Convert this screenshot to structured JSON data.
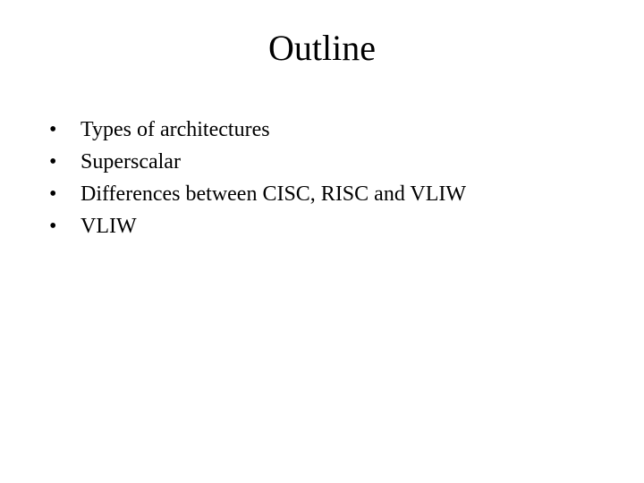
{
  "slide": {
    "title": "Outline",
    "title_fontsize": 40,
    "title_color": "#000000",
    "bullets": [
      "Types of architectures",
      "Superscalar",
      "Differences between CISC, RISC and VLIW",
      "VLIW"
    ],
    "bullet_fontsize": 24,
    "bullet_color": "#000000",
    "background_color": "#ffffff",
    "font_family": "Times New Roman"
  }
}
